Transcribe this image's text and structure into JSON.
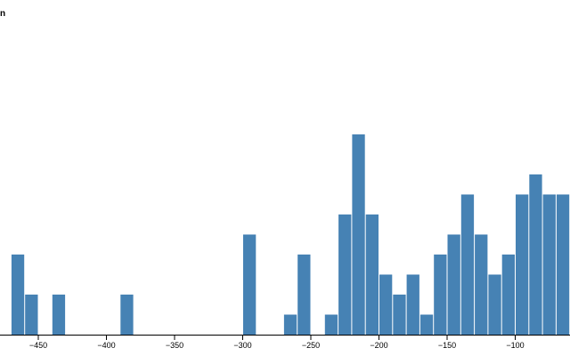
{
  "chart_data": {
    "type": "bar",
    "title_fragment": "n",
    "xlabel": "",
    "ylabel": "",
    "bin_width": 10,
    "x_ticks": [
      -450,
      -400,
      -350,
      -300,
      -250,
      -200,
      -150,
      -100
    ],
    "x_tick_labels": [
      "−450",
      "−400",
      "−350",
      "−300",
      "−250",
      "−200",
      "−150",
      "−100"
    ],
    "xlim": [
      -475,
      -70
    ],
    "ylim": [
      0,
      10
    ],
    "bars": [
      {
        "x0": -470,
        "x1": -460,
        "value": 4
      },
      {
        "x0": -460,
        "x1": -450,
        "value": 2
      },
      {
        "x0": -440,
        "x1": -430,
        "value": 2
      },
      {
        "x0": -390,
        "x1": -380,
        "value": 2
      },
      {
        "x0": -300,
        "x1": -290,
        "value": 5
      },
      {
        "x0": -270,
        "x1": -260,
        "value": 1
      },
      {
        "x0": -260,
        "x1": -250,
        "value": 4
      },
      {
        "x0": -240,
        "x1": -230,
        "value": 1
      },
      {
        "x0": -230,
        "x1": -220,
        "value": 6
      },
      {
        "x0": -220,
        "x1": -210,
        "value": 10
      },
      {
        "x0": -210,
        "x1": -200,
        "value": 6
      },
      {
        "x0": -200,
        "x1": -190,
        "value": 3
      },
      {
        "x0": -190,
        "x1": -180,
        "value": 2
      },
      {
        "x0": -180,
        "x1": -170,
        "value": 3
      },
      {
        "x0": -170,
        "x1": -160,
        "value": 1
      },
      {
        "x0": -160,
        "x1": -150,
        "value": 4
      },
      {
        "x0": -150,
        "x1": -140,
        "value": 5
      },
      {
        "x0": -140,
        "x1": -130,
        "value": 7
      },
      {
        "x0": -130,
        "x1": -120,
        "value": 5
      },
      {
        "x0": -120,
        "x1": -110,
        "value": 3
      },
      {
        "x0": -110,
        "x1": -100,
        "value": 4
      },
      {
        "x0": -100,
        "x1": -90,
        "value": 7
      },
      {
        "x0": -90,
        "x1": -80,
        "value": 8
      },
      {
        "x0": -80,
        "x1": -70,
        "value": 7
      },
      {
        "x0": -70,
        "x1": -60,
        "value": 7
      }
    ],
    "bar_color": "#4682b4",
    "grid": false,
    "legend": "none"
  }
}
